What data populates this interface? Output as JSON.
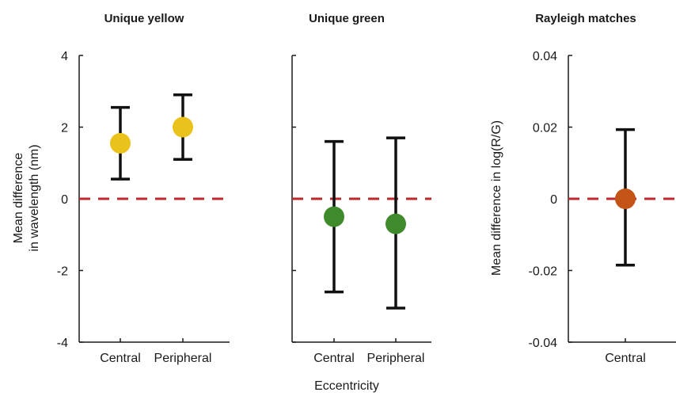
{
  "chart_data": [
    {
      "type": "scatter",
      "title": "Unique yellow",
      "ylabel_lines": [
        "Mean difference",
        "in wavelength (nm)"
      ],
      "categories": [
        "Central",
        "Peripheral"
      ],
      "ylim": [
        -4,
        4
      ],
      "yticks": [
        "4",
        "2",
        "0",
        "-2",
        "-4"
      ],
      "ytick_values": [
        4,
        2,
        0,
        -2,
        -4
      ],
      "reference_line": 0,
      "marker_color": "#e9c21c",
      "points": [
        {
          "category": "Central",
          "mean": 1.55,
          "lower": 0.55,
          "upper": 2.55
        },
        {
          "category": "Peripheral",
          "mean": 2.0,
          "lower": 1.1,
          "upper": 2.9
        }
      ]
    },
    {
      "type": "scatter",
      "title": "Unique green",
      "categories": [
        "Central",
        "Peripheral"
      ],
      "ylim": [
        -4,
        4
      ],
      "ytick_values": [
        4,
        2,
        0,
        -2,
        -4
      ],
      "reference_line": 0,
      "marker_color": "#3f8a2b",
      "points": [
        {
          "category": "Central",
          "mean": -0.5,
          "lower": -2.6,
          "upper": 1.6
        },
        {
          "category": "Peripheral",
          "mean": -0.7,
          "lower": -3.05,
          "upper": 1.7
        }
      ]
    },
    {
      "type": "scatter",
      "title": "Rayleigh matches",
      "ylabel": "Mean difference in log(R/G)",
      "categories": [
        "Central"
      ],
      "ylim": [
        -0.04,
        0.04
      ],
      "yticks": [
        "0.04",
        "0.02",
        "0",
        "-0.02",
        "-0.04"
      ],
      "ytick_values": [
        0.04,
        0.02,
        0,
        -0.02,
        -0.04
      ],
      "reference_line": 0,
      "marker_color": "#c45416",
      "points": [
        {
          "category": "Central",
          "mean": 0.0,
          "lower": -0.0185,
          "upper": 0.0193
        }
      ]
    }
  ],
  "shared_xlabel": "Eccentricity",
  "colors": {
    "axis": "#1a1a1a",
    "errorbar": "#111111",
    "reference_line": "#c0282d"
  }
}
